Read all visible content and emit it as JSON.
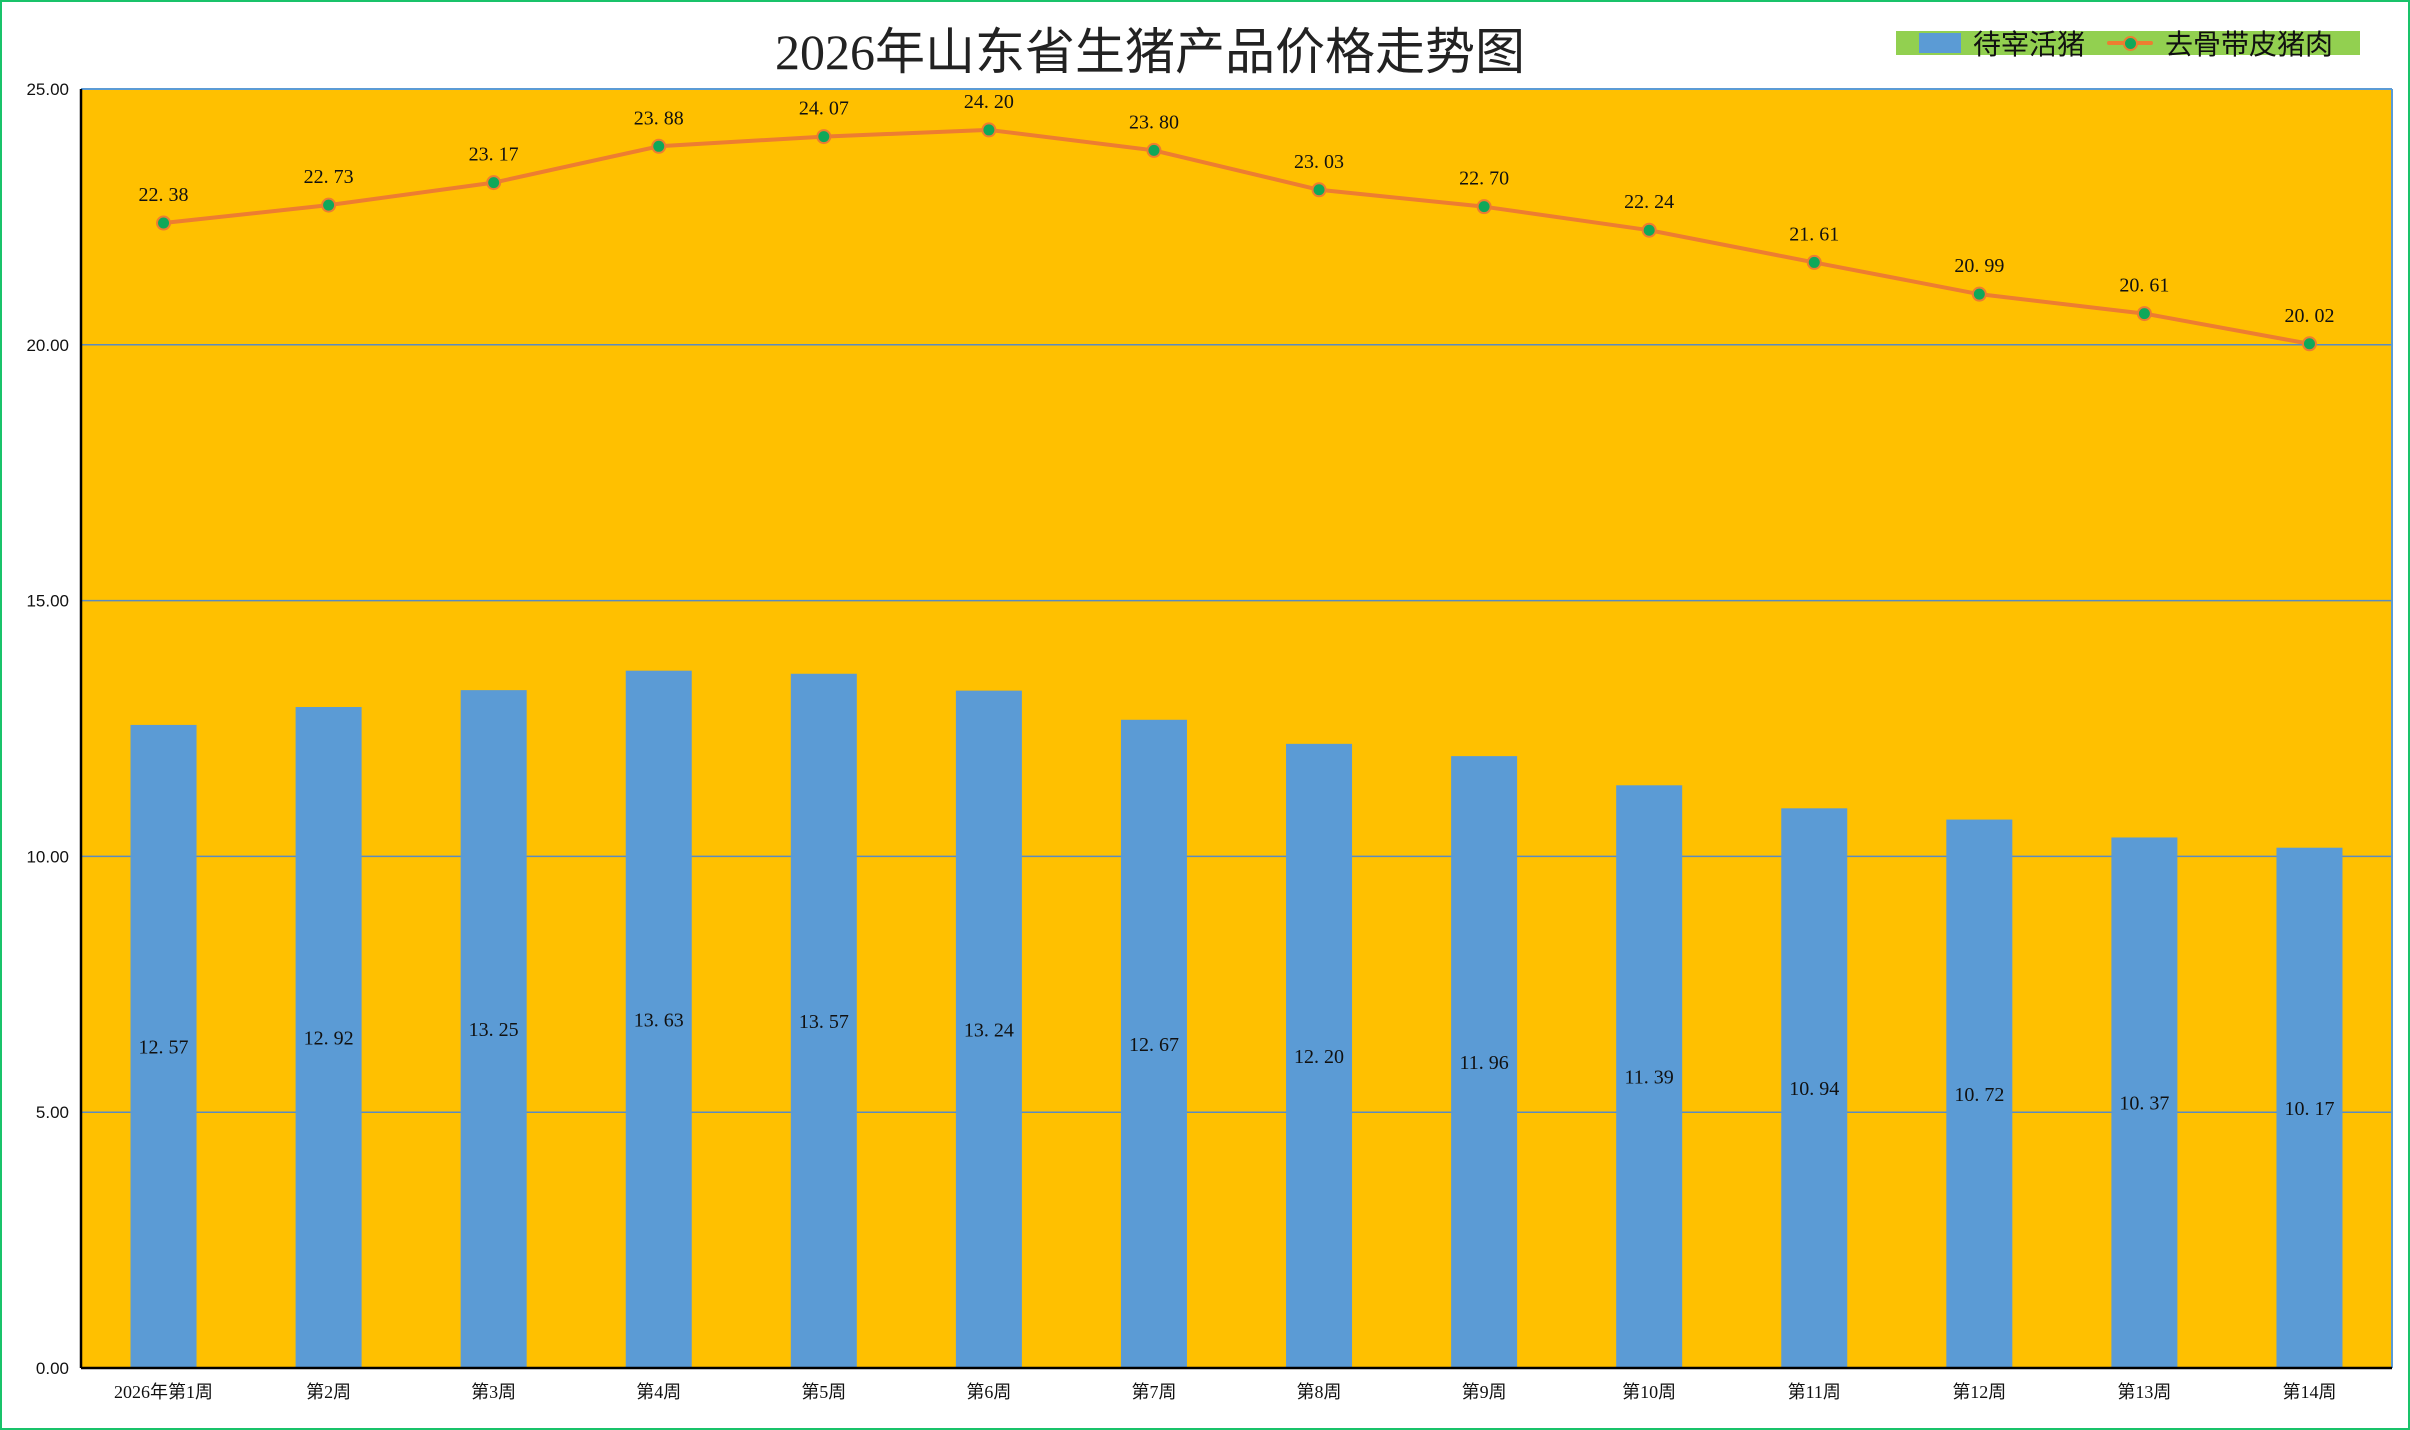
{
  "chart_data": {
    "type": "bar",
    "title": "2026年山东省生猪产品价格走势图",
    "categories": [
      "2026年第1周",
      "第2周",
      "第3周",
      "第4周",
      "第5周",
      "第6周",
      "第7周",
      "第8周",
      "第9周",
      "第10周",
      "第11周",
      "第12周",
      "第13周",
      "第14周"
    ],
    "series": [
      {
        "name": "待宰活猪",
        "type": "bar",
        "color": "#5b9bd5",
        "values": [
          12.57,
          12.92,
          13.25,
          13.63,
          13.57,
          13.24,
          12.67,
          12.2,
          11.96,
          11.39,
          10.94,
          10.72,
          10.37,
          10.17
        ]
      },
      {
        "name": "去骨带皮猪肉",
        "type": "line",
        "color": "#ed7d31",
        "marker_color": "#0fa85a",
        "values": [
          22.38,
          22.73,
          23.17,
          23.88,
          24.07,
          24.2,
          23.8,
          23.03,
          22.7,
          22.24,
          21.61,
          20.99,
          20.61,
          20.02
        ]
      }
    ],
    "yticks": [
      "0.00",
      "5.00",
      "10.00",
      "15.00",
      "20.00",
      "25.00"
    ],
    "ylim": [
      0,
      25
    ],
    "xlabel": "",
    "ylabel": "",
    "grid": true,
    "legend_position": "top-right",
    "plot_background": "#ffc000"
  }
}
